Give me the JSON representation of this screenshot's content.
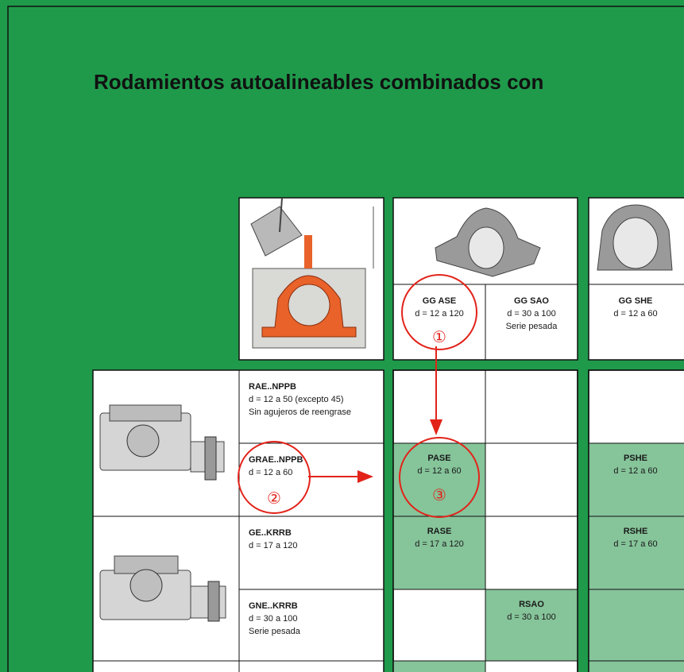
{
  "title": "Rodamientos autoalineables combinados con",
  "housings": [
    {
      "name": "GG ASE",
      "range": "d = 12 a 120"
    },
    {
      "name": "GG SAO",
      "range": "d = 30 a 100",
      "note": "Serie pesada"
    },
    {
      "name": "GG SHE",
      "range": "d = 12 a 60"
    }
  ],
  "bearings": [
    {
      "name": "RAE..NPPB",
      "range": "d = 12 a 50 (excepto 45)",
      "note": "Sin agujeros de reengrase"
    },
    {
      "name": "GRAE..NPPB",
      "range": "d = 12 a 60"
    },
    {
      "name": "GE..KRRB",
      "range": "d = 17 a 120"
    },
    {
      "name": "GNE..KRRB",
      "range": "d = 30 a 100",
      "note": "Serie pesada"
    }
  ],
  "units": [
    {
      "name": "PASE",
      "range": "d = 12 a 60"
    },
    {
      "name": "RASE",
      "range": "d = 17 a 120"
    },
    {
      "name": "RSAO",
      "range": "d = 30 a 100"
    },
    {
      "name": "PSHE",
      "range": "d = 12 a 60"
    },
    {
      "name": "RSHE",
      "range": "d = 17 a 60"
    }
  ],
  "callouts": [
    "①",
    "②",
    "③"
  ]
}
